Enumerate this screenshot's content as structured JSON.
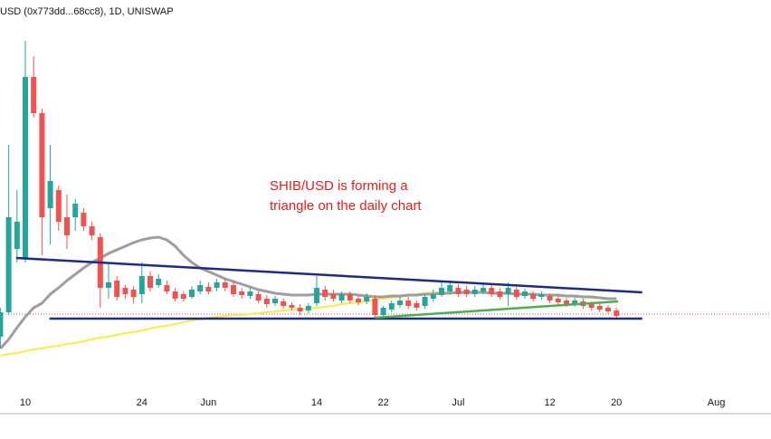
{
  "chart_data": {
    "type": "candlestick",
    "title": "USD (0x773dd...68cc8), 1D, UNISWAP",
    "annotation": [
      "SHIB/USD is forming a",
      "triangle on the daily chart"
    ],
    "annotation_color": "#e3201b",
    "up_color": "#26a69a",
    "down_color": "#ef5350",
    "ylim": [
      0,
      45.5
    ],
    "categories": [
      null,
      null,
      null,
      "10",
      null,
      null,
      null,
      null,
      null,
      null,
      null,
      null,
      null,
      null,
      null,
      null,
      null,
      "24",
      null,
      null,
      null,
      null,
      null,
      null,
      null,
      "Jun",
      null,
      null,
      null,
      null,
      null,
      null,
      null,
      null,
      null,
      null,
      null,
      null,
      "14",
      null,
      null,
      null,
      null,
      null,
      null,
      null,
      "22",
      null,
      null,
      null,
      null,
      null,
      null,
      null,
      null,
      "Jul",
      null,
      null,
      null,
      null,
      null,
      null,
      null,
      null,
      null,
      null,
      "12",
      null,
      null,
      null,
      null,
      null,
      null,
      null,
      "20",
      null,
      null,
      null,
      null,
      null,
      null,
      null,
      null,
      null,
      null,
      null,
      "Aug",
      null,
      null,
      null,
      null,
      null
    ],
    "open": [
      8.3,
      11.0,
      18.0,
      17.0,
      37.0,
      33.0,
      22.5,
      24.5,
      21.5,
      21.5,
      22.0,
      20.5,
      19.3,
      13.7,
      14.5,
      13.7,
      13.5,
      13.0,
      15.0,
      14.0,
      14.0,
      13.3,
      13.0,
      12.7,
      13.3,
      13.8,
      13.7,
      14.3,
      14.0,
      13.3,
      12.8,
      13.0,
      12.5,
      12.0,
      12.2,
      11.8,
      11.5,
      11.2,
      12.0,
      13.5,
      13.0,
      12.3,
      13.0,
      12.5,
      12.2,
      12.5,
      10.7,
      11.3,
      11.8,
      12.3,
      12.0,
      11.7,
      12.5,
      12.9,
      13.3,
      13.7,
      13.5,
      13.0,
      13.3,
      13.7,
      13.3,
      13.0,
      13.5,
      12.8,
      13.0,
      12.7,
      12.8,
      12.5,
      12.3,
      11.9,
      12.2,
      11.9,
      11.7,
      11.5,
      11.2,
      null,
      null,
      null,
      null,
      null,
      null,
      null,
      null,
      null,
      null,
      null,
      null,
      null,
      null,
      null,
      null,
      null
    ],
    "high": [
      11.5,
      29.5,
      24.5,
      41.0,
      39.3,
      33.5,
      29.5,
      25.0,
      24.0,
      23.5,
      22.5,
      21.0,
      19.7,
      16.5,
      15.0,
      14.0,
      13.9,
      16.5,
      15.5,
      15.2,
      14.5,
      13.7,
      13.3,
      13.9,
      14.5,
      14.3,
      14.7,
      14.7,
      14.5,
      13.7,
      13.7,
      13.3,
      12.9,
      12.8,
      12.5,
      12.1,
      11.9,
      12.0,
      15.0,
      13.9,
      13.5,
      13.3,
      13.3,
      12.8,
      13.1,
      12.9,
      11.7,
      12.3,
      12.7,
      12.7,
      12.3,
      13.0,
      13.5,
      14.3,
      14.5,
      14.1,
      13.9,
      13.9,
      14.1,
      14.0,
      13.7,
      14.3,
      13.8,
      13.6,
      13.3,
      13.3,
      13.1,
      12.8,
      12.6,
      12.6,
      12.5,
      12.2,
      12.0,
      11.8,
      11.5,
      null,
      null,
      null,
      null,
      null,
      null,
      null,
      null,
      null,
      null,
      null,
      null,
      null,
      null,
      null,
      null,
      null
    ],
    "low": [
      7.0,
      10.7,
      16.5,
      16.5,
      32.5,
      17.3,
      18.5,
      20.0,
      18.0,
      20.0,
      20.0,
      19.0,
      11.5,
      12.5,
      12.3,
      12.5,
      12.0,
      12.0,
      13.3,
      13.7,
      13.0,
      12.2,
      12.2,
      12.5,
      13.0,
      13.0,
      13.3,
      13.3,
      12.7,
      12.5,
      12.5,
      12.0,
      11.5,
      11.7,
      11.4,
      11.2,
      10.7,
      10.9,
      11.7,
      12.3,
      12.2,
      12.0,
      12.0,
      11.8,
      11.9,
      10.3,
      10.3,
      11.0,
      11.5,
      11.4,
      11.2,
      11.4,
      12.2,
      12.7,
      13.0,
      12.7,
      12.7,
      12.7,
      13.0,
      12.7,
      12.4,
      11.7,
      12.4,
      12.5,
      12.2,
      12.4,
      12.0,
      11.8,
      11.6,
      11.6,
      11.4,
      11.2,
      11.0,
      10.8,
      10.4,
      null,
      null,
      null,
      null,
      null,
      null,
      null,
      null,
      null,
      null,
      null,
      null,
      null,
      null,
      null,
      null,
      null
    ],
    "close": [
      11.0,
      21.5,
      21.0,
      37.0,
      33.0,
      21.5,
      25.5,
      21.0,
      19.5,
      23.0,
      20.5,
      19.5,
      13.7,
      14.3,
      12.7,
      13.0,
      12.7,
      15.0,
      13.7,
      14.7,
      13.3,
      12.5,
      12.5,
      13.5,
      14.0,
      13.3,
      14.3,
      13.7,
      13.0,
      12.9,
      13.3,
      12.3,
      11.9,
      12.5,
      11.7,
      11.5,
      11.1,
      11.7,
      13.7,
      12.7,
      12.5,
      13.0,
      12.3,
      12.1,
      12.7,
      10.7,
      11.5,
      12.0,
      12.3,
      11.7,
      11.5,
      12.7,
      13.0,
      13.7,
      14.0,
      13.0,
      13.0,
      13.5,
      13.7,
      13.0,
      12.7,
      13.7,
      12.7,
      13.3,
      12.5,
      13.0,
      12.3,
      12.1,
      11.9,
      12.3,
      11.7,
      11.5,
      11.3,
      11.1,
      10.6,
      null,
      null,
      null,
      null,
      null,
      null,
      null,
      null,
      null,
      null,
      null,
      null,
      null,
      null,
      null,
      null,
      null
    ],
    "overlays": [
      {
        "color": "#ffeb3b",
        "width": 2,
        "values": [
          6.2,
          6.4,
          6.5,
          6.7,
          6.9,
          7.0,
          7.2,
          7.3,
          7.5,
          7.6,
          7.8,
          8.0,
          8.2,
          8.3,
          8.5,
          8.7,
          8.8,
          9.0,
          9.2,
          9.4,
          9.5,
          9.7,
          9.9,
          10.1,
          10.2,
          10.4,
          10.5,
          10.6,
          10.7,
          10.7,
          10.8,
          10.9,
          11.0,
          11.1,
          11.2,
          11.3,
          11.3,
          11.4,
          11.5,
          11.6,
          11.7,
          11.9,
          12.0,
          12.1,
          12.2,
          12.4,
          12.5,
          12.6,
          12.7,
          12.8,
          13.0,
          13.1,
          13.2,
          13.2,
          13.2,
          13.2,
          13.2,
          13.2,
          13.2,
          13.2,
          13.1,
          13.1,
          13.1,
          13.0,
          13.0,
          12.9,
          12.9,
          12.8,
          12.8,
          12.7,
          12.7,
          12.6,
          12.6,
          12.5,
          12.5,
          null,
          null,
          null,
          null,
          null,
          null,
          null,
          null,
          null,
          null,
          null,
          null,
          null,
          null,
          null,
          null,
          null
        ]
      },
      {
        "color": "#9e9e9e",
        "width": 3,
        "values": [
          7.0,
          8.0,
          9.3,
          10.5,
          11.5,
          12.0,
          13.0,
          13.7,
          14.5,
          15.2,
          15.9,
          16.5,
          17.0,
          17.5,
          17.9,
          18.3,
          18.7,
          19.0,
          19.2,
          19.3,
          19.0,
          18.3,
          17.3,
          16.5,
          15.9,
          15.5,
          15.1,
          14.7,
          14.4,
          14.1,
          13.8,
          13.5,
          13.3,
          13.1,
          13.0,
          12.9,
          12.9,
          12.9,
          13.0,
          13.0,
          13.0,
          13.0,
          13.0,
          12.9,
          12.8,
          12.7,
          12.7,
          12.8,
          12.8,
          12.9,
          12.9,
          13.0,
          13.0,
          13.1,
          13.1,
          13.2,
          13.2,
          13.2,
          13.2,
          13.1,
          13.1,
          13.1,
          13.0,
          13.0,
          13.0,
          12.9,
          12.9,
          12.9,
          12.8,
          12.8,
          12.7,
          12.7,
          12.6,
          12.5,
          12.5,
          null,
          null,
          null,
          null,
          null,
          null,
          null,
          null,
          null,
          null,
          null,
          null,
          null,
          null,
          null,
          null,
          null
        ]
      }
    ],
    "trendlines": [
      {
        "color": "#1c2a8f",
        "x": [
          1.9,
          77.1
        ],
        "values": [
          17.0,
          13.2
        ]
      },
      {
        "color": "#1c2a8f",
        "x": [
          5.9,
          77.1
        ],
        "values": [
          10.3,
          10.3
        ]
      },
      {
        "color": "#4caf50",
        "x": [
          45,
          74.2
        ],
        "values": [
          10.4,
          12.2
        ]
      }
    ],
    "price_line": {
      "color": "#ef5350",
      "value": 10.8
    }
  }
}
